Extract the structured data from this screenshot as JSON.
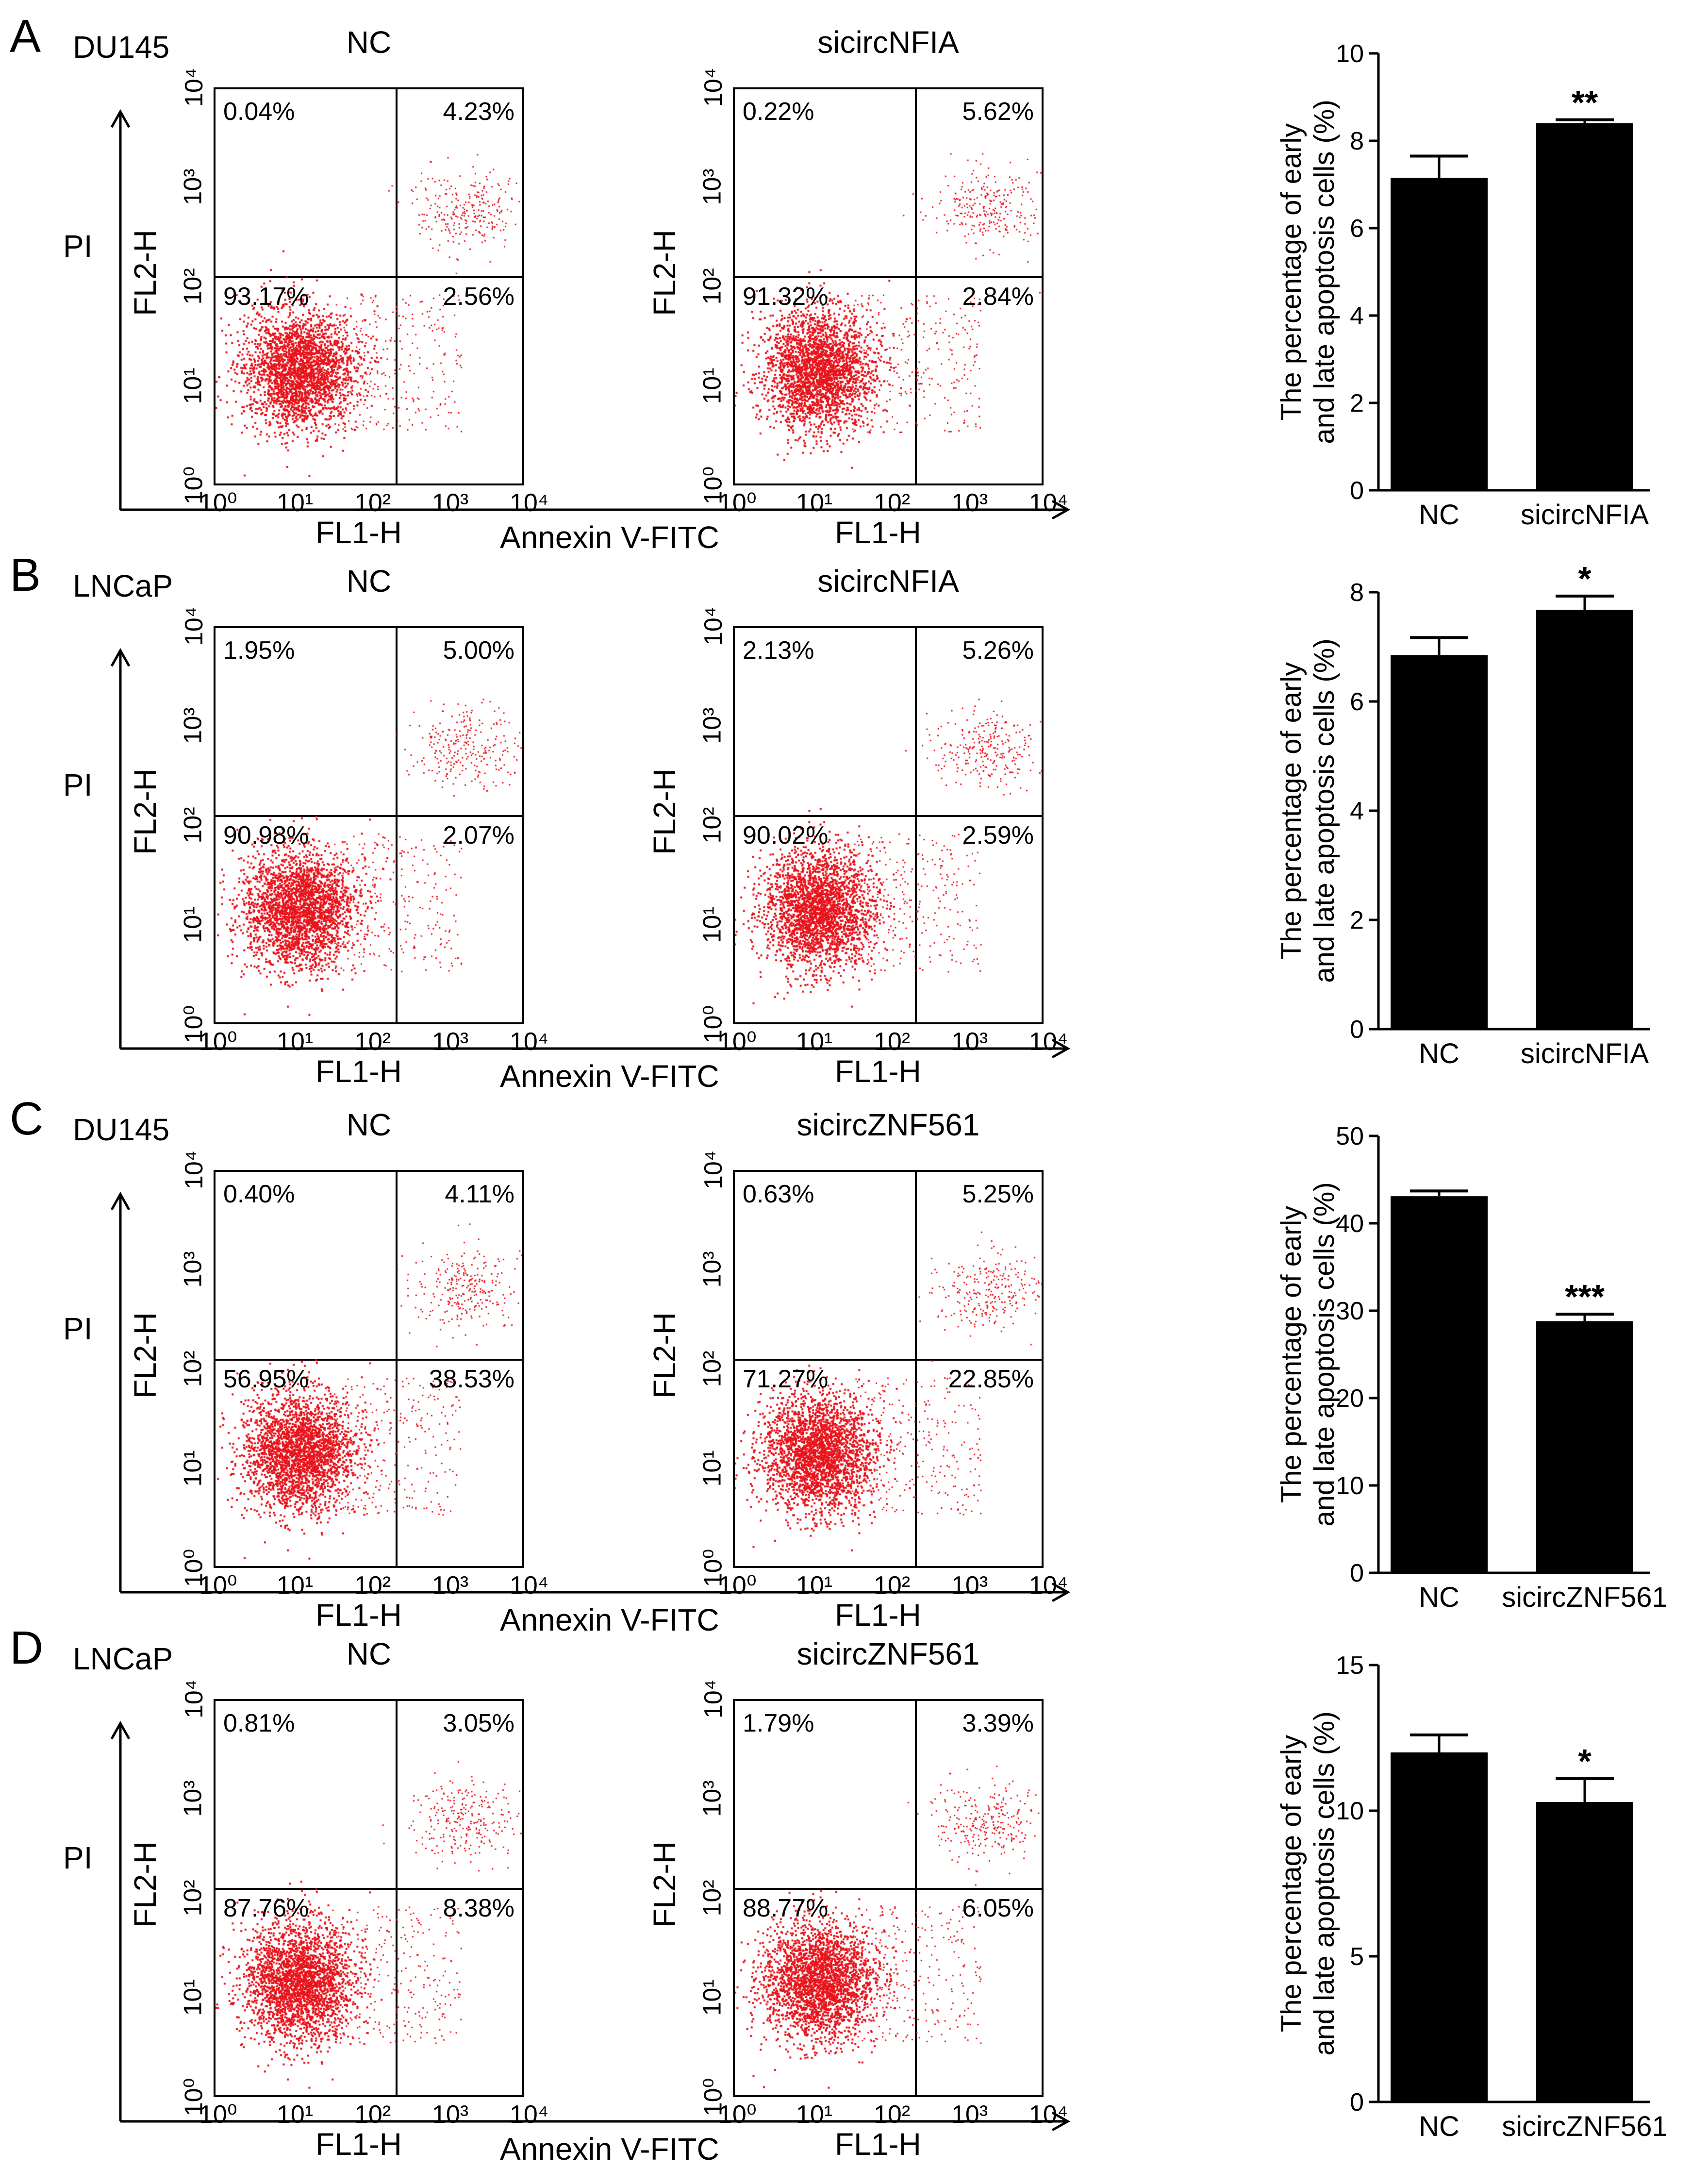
{
  "figure": {
    "axis_labels": {
      "y_flow": "FL2-H",
      "x_flow": "FL1-H",
      "pi": "PI",
      "annexin": "Annexin V-FITC"
    },
    "bar_ylabel": "The percentage of early and late apoptosis cells (%)",
    "log_ticks": [
      "10⁰",
      "10¹",
      "10²",
      "10³",
      "10⁴"
    ],
    "panels": [
      {
        "letter": "A",
        "cell_line": "DU145",
        "plots": [
          {
            "title": "NC",
            "q_ul": "0.04%",
            "q_ur": "4.23%",
            "q_ll": "93.17%",
            "q_lr": "2.56%"
          },
          {
            "title": "sicircNFIA",
            "q_ul": "0.22%",
            "q_ur": "5.62%",
            "q_ll": "91.32%",
            "q_lr": "2.84%"
          }
        ]
      },
      {
        "letter": "B",
        "cell_line": "LNCaP",
        "plots": [
          {
            "title": "NC",
            "q_ul": "1.95%",
            "q_ur": "5.00%",
            "q_ll": "90.98%",
            "q_lr": "2.07%"
          },
          {
            "title": "sicircNFIA",
            "q_ul": "2.13%",
            "q_ur": "5.26%",
            "q_ll": "90.02%",
            "q_lr": "2.59%"
          }
        ]
      },
      {
        "letter": "C",
        "cell_line": "DU145",
        "plots": [
          {
            "title": "NC",
            "q_ul": "0.40%",
            "q_ur": "4.11%",
            "q_ll": "56.95%",
            "q_lr": "38.53%"
          },
          {
            "title": "sicircZNF561",
            "q_ul": "0.63%",
            "q_ur": "5.25%",
            "q_ll": "71.27%",
            "q_lr": "22.85%"
          }
        ]
      },
      {
        "letter": "D",
        "cell_line": "LNCaP",
        "plots": [
          {
            "title": "NC",
            "q_ul": "0.81%",
            "q_ur": "3.05%",
            "q_ll": "87.76%",
            "q_lr": "8.38%"
          },
          {
            "title": "sicircZNF561",
            "q_ul": "1.79%",
            "q_ur": "3.39%",
            "q_ll": "88.77%",
            "q_lr": "6.05%"
          }
        ]
      }
    ]
  },
  "chart_data": [
    {
      "type": "bar",
      "panel": "A",
      "categories": [
        "NC",
        "sicircNFIA"
      ],
      "values": [
        7.15,
        8.4
      ],
      "errors": [
        0.5,
        0.08
      ],
      "significance": [
        "",
        "**"
      ],
      "ylabel": "The percentage of early and late apoptosis cells (%)",
      "ylim": [
        0,
        10
      ],
      "yticks": [
        0,
        2,
        4,
        6,
        8,
        10
      ]
    },
    {
      "type": "bar",
      "panel": "B",
      "categories": [
        "NC",
        "sicircNFIA"
      ],
      "values": [
        6.85,
        7.68
      ],
      "errors": [
        0.32,
        0.25
      ],
      "significance": [
        "",
        "*"
      ],
      "ylabel": "The percentage of early and late apoptosis cells (%)",
      "ylim": [
        0,
        8
      ],
      "yticks": [
        0,
        2,
        4,
        6,
        8
      ]
    },
    {
      "type": "bar",
      "panel": "C",
      "categories": [
        "NC",
        "sicircZNF561"
      ],
      "values": [
        43.1,
        28.8
      ],
      "errors": [
        0.6,
        0.8
      ],
      "significance": [
        "",
        "***"
      ],
      "ylabel": "The percentage of early and late apoptosis cells (%)",
      "ylim": [
        0,
        50
      ],
      "yticks": [
        0,
        10,
        20,
        30,
        40,
        50
      ]
    },
    {
      "type": "bar",
      "panel": "D",
      "categories": [
        "NC",
        "sicircZNF561"
      ],
      "values": [
        12.0,
        10.3
      ],
      "errors": [
        0.6,
        0.8
      ],
      "significance": [
        "",
        "*"
      ],
      "ylabel": "The percentage of early and late apoptosis cells (%)",
      "ylim": [
        0,
        15
      ],
      "yticks": [
        0,
        5,
        10,
        15
      ]
    }
  ]
}
